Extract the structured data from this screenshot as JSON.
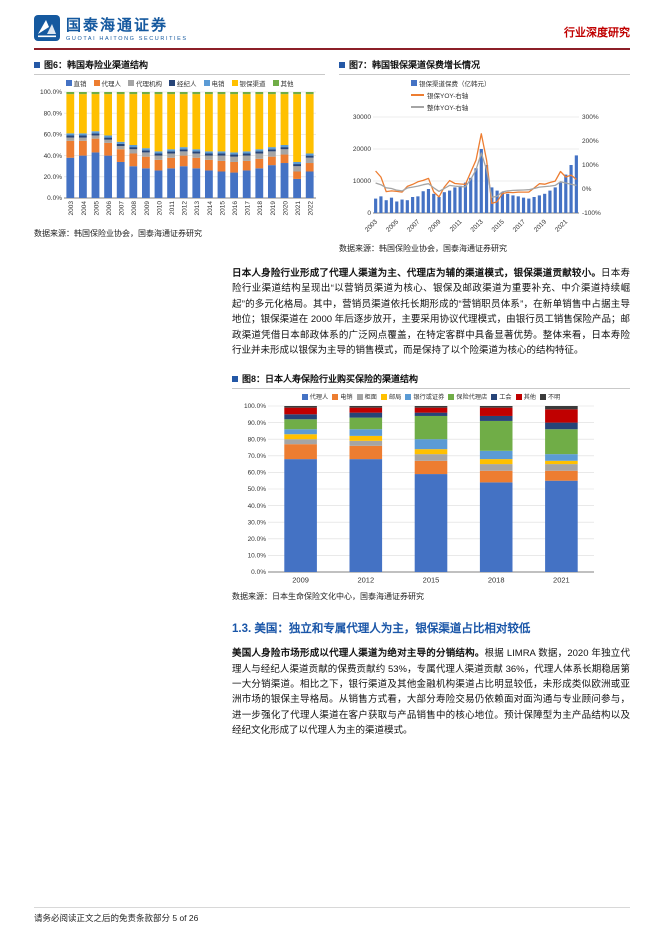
{
  "header": {
    "brand_cn": "国泰海通证券",
    "brand_en": "GUOTAI HAITONG SECURITIES",
    "report_type": "行业深度研究"
  },
  "figure6": {
    "title": "图6：韩国寿险业渠道结构",
    "source": "数据来源：韩国保险业协会，国泰海通证券研究"
  },
  "figure7": {
    "title": "图7：韩国银保渠道保费增长情况",
    "source": "数据来源：韩国保险业协会，国泰海通证券研究"
  },
  "figure8": {
    "title": "图8：日本人寿保险行业购买保险的渠道结构",
    "source": "数据来源：日本生命保险文化中心，国泰海通证券研究"
  },
  "paragraphs": {
    "japan_bold": "日本人身险行业形成了代理人渠道为主、代理店为辅的渠道模式，银保渠道贡献较小。",
    "japan_text": "日本寿险行业渠道结构呈现出“以营销员渠道为核心、银保及邮政渠道为重要补充、中介渠道持续崛起”的多元化格局。其中，营销员渠道依托长期形成的“营销职员体系”，在新单销售中占据主导地位；银保渠道在 2000 年后逐步放开，主要采用协议代理模式，由银行员工销售保险产品；邮政渠道凭借日本邮政体系的广泛网点覆盖，在特定客群中具备显著优势。整体来看，日本寿险行业并未形成以银保为主导的销售模式，而是保持了以个险渠道为核心的结构特征。",
    "us_bold": "美国人身险市场形成以代理人渠道为绝对主导的分销结构。",
    "us_text": "根据 LIMRA 数据，2020 年独立代理人与经纪人渠道贡献的保费贡献约 53%，专属代理人渠道贡献 36%，代理人体系长期稳居第一大分销渠道。相比之下，银行渠道及其他金融机构渠道占比明显较低，未形成类似欧洲或亚洲市场的银保主导格局。从销售方式看，大部分寿险交易仍依赖面对面沟通与专业顾问参与，进一步强化了代理人渠道在客户获取与产品销售中的核心地位。预计保障型为主产品结构以及经纪文化形成了以代理人为主的渠道模式。"
  },
  "section": {
    "heading": "1.3.  美国：独立和专属代理人为主，银保渠道占比相对较低"
  },
  "footer": {
    "disclaimer": "请务必阅读正文之后的免责条款部分 5 of 26"
  },
  "chart_data": [
    {
      "id": "fig6",
      "type": "bar",
      "stacked": true,
      "percent": true,
      "title": "韩国寿险业渠道结构",
      "y_ticks": [
        "0.0%",
        "20.0%",
        "40.0%",
        "60.0%",
        "80.0%",
        "100.0%"
      ],
      "ylim": [
        0,
        100
      ],
      "categories": [
        "2003",
        "2004",
        "2005",
        "2006",
        "2007",
        "2008",
        "2009",
        "2010",
        "2011",
        "2012",
        "2013",
        "2014",
        "2015",
        "2016",
        "2017",
        "2018",
        "2019",
        "2020",
        "2021",
        "2022"
      ],
      "series": [
        {
          "name": "直销",
          "color": "#4472C4",
          "values": [
            38,
            40,
            43,
            40,
            34,
            30,
            28,
            26,
            28,
            30,
            28,
            26,
            25,
            24,
            26,
            28,
            31,
            33,
            18,
            25
          ]
        },
        {
          "name": "代理人",
          "color": "#ED7D31",
          "values": [
            16,
            14,
            13,
            12,
            12,
            12,
            11,
            10,
            10,
            10,
            10,
            10,
            10,
            10,
            9,
            9,
            8,
            8,
            7,
            8
          ]
        },
        {
          "name": "代理机构",
          "color": "#A5A5A5",
          "values": [
            3,
            3,
            3,
            3,
            3,
            4,
            4,
            4,
            4,
            4,
            4,
            4,
            5,
            5,
            5,
            5,
            5,
            5,
            5,
            5
          ]
        },
        {
          "name": "经纪人",
          "color": "#264478",
          "values": [
            2,
            2,
            2,
            2,
            2,
            2,
            2,
            2,
            2,
            2,
            2,
            2,
            2,
            2,
            2,
            2,
            2,
            2,
            2,
            2
          ]
        },
        {
          "name": "电销",
          "color": "#5B9BD5",
          "values": [
            2,
            2,
            2,
            2,
            2,
            2,
            2,
            2,
            2,
            2,
            2,
            2,
            2,
            2,
            2,
            2,
            2,
            2,
            2,
            2
          ]
        },
        {
          "name": "银保渠道",
          "color": "#FFC000",
          "values": [
            37,
            37,
            35,
            39,
            45,
            48,
            51,
            54,
            52,
            50,
            52,
            54,
            54,
            55,
            54,
            52,
            50,
            48,
            64,
            56
          ]
        },
        {
          "name": "其他",
          "color": "#70AD47",
          "values": [
            2,
            2,
            2,
            2,
            2,
            2,
            2,
            2,
            2,
            2,
            2,
            2,
            2,
            2,
            2,
            2,
            2,
            2,
            2,
            2
          ]
        }
      ]
    },
    {
      "id": "fig7",
      "type": "bar+line",
      "title": "韩国银保渠道保费增长情况",
      "left_ticks": [
        "0",
        "10000",
        "20000",
        "30000"
      ],
      "right_ticks": [
        "-100%",
        "0%",
        "100%",
        "200%",
        "300%"
      ],
      "left_ylim": [
        0,
        30000
      ],
      "right_ylim": [
        -100,
        300
      ],
      "x_labels": [
        "2003",
        "2005",
        "2007",
        "2009",
        "2011",
        "2013",
        "2015",
        "2017",
        "2019",
        "2021"
      ],
      "bar_series": {
        "name": "银保渠道保费（亿韩元）",
        "color": "#4472C4",
        "values": [
          4500,
          5200,
          4000,
          4800,
          3600,
          4200,
          4000,
          5000,
          5200,
          6800,
          7500,
          6000,
          5000,
          6500,
          7000,
          8000,
          8500,
          9500,
          11000,
          14000,
          20000,
          15000,
          8000,
          7000,
          6500,
          6000,
          5500,
          5200,
          4800,
          4500,
          5000,
          5500,
          6000,
          7000,
          8000,
          9500,
          12000,
          15000,
          18000
        ]
      },
      "line_series": [
        {
          "name": "银保YOY-右轴",
          "color": "#ED7D31",
          "values": [
            75,
            50,
            -11,
            -8,
            -10,
            -13,
            11,
            19,
            30,
            36,
            44,
            -12,
            -33,
            8,
            35,
            23,
            21,
            19,
            70,
            120,
            230,
            120,
            -60,
            -53,
            -19,
            -14,
            -15,
            -13,
            -13,
            -13,
            4,
            22,
            20,
            27,
            33,
            73,
            50,
            58,
            40
          ]
        },
        {
          "name": "整体YOY-右轴",
          "color": "#A5A5A5",
          "values": [
            25,
            18,
            5,
            2,
            -5,
            -8,
            4,
            8,
            12,
            18,
            22,
            5,
            -10,
            2,
            15,
            12,
            10,
            9,
            40,
            80,
            150,
            80,
            -35,
            -30,
            -12,
            -8,
            -6,
            -5,
            -4,
            -3,
            2,
            8,
            10,
            12,
            15,
            30,
            25,
            20,
            15
          ]
        }
      ]
    },
    {
      "id": "fig8",
      "type": "bar",
      "stacked": true,
      "percent": true,
      "title": "日本人寿保险行业购买保险的渠道结构",
      "y_ticks": [
        "0.0%",
        "10.0%",
        "20.0%",
        "30.0%",
        "40.0%",
        "50.0%",
        "60.0%",
        "70.0%",
        "80.0%",
        "90.0%",
        "100.0%"
      ],
      "ylim": [
        0,
        100
      ],
      "categories": [
        "2009",
        "2012",
        "2015",
        "2018",
        "2021"
      ],
      "series": [
        {
          "name": "代理人",
          "color": "#4472C4",
          "values": [
            68,
            68,
            59,
            54,
            55
          ]
        },
        {
          "name": "电销",
          "color": "#ED7D31",
          "values": [
            9,
            8,
            8,
            7,
            6
          ]
        },
        {
          "name": "柜面",
          "color": "#A5A5A5",
          "values": [
            3,
            3,
            4,
            4,
            4
          ]
        },
        {
          "name": "邮局",
          "color": "#FFC000",
          "values": [
            3,
            3,
            3,
            3,
            2
          ]
        },
        {
          "name": "银行或证券",
          "color": "#5B9BD5",
          "values": [
            3,
            4,
            6,
            5,
            4
          ]
        },
        {
          "name": "保险代理店",
          "color": "#70AD47",
          "values": [
            6,
            7,
            14,
            18,
            15
          ]
        },
        {
          "name": "工会",
          "color": "#264478",
          "values": [
            3,
            3,
            2,
            3,
            4
          ]
        },
        {
          "name": "其他",
          "color": "#C00000",
          "values": [
            4,
            3,
            3,
            5,
            8
          ]
        },
        {
          "name": "不明",
          "color": "#3B3B3B",
          "values": [
            1,
            1,
            1,
            1,
            2
          ]
        }
      ]
    }
  ]
}
